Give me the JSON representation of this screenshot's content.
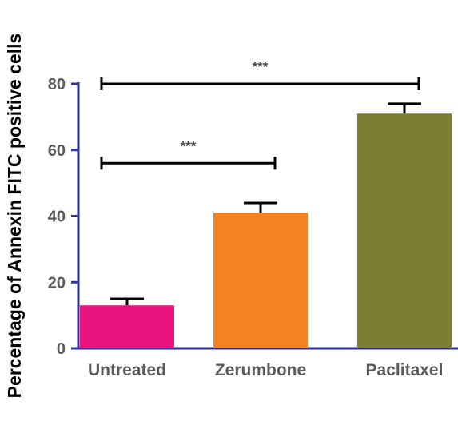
{
  "chart_data": {
    "type": "bar",
    "title": "",
    "xlabel": "",
    "ylabel": "Percentage of Annexin  FITC positive cells",
    "categories": [
      "Untreated",
      "Zerumbone",
      "Paclitaxel"
    ],
    "values": [
      13,
      41,
      71
    ],
    "errors": [
      2,
      3,
      3
    ],
    "colors": [
      "#e8147f",
      "#f58220",
      "#7b7e33"
    ],
    "ylim": [
      0,
      80
    ],
    "yticks": [
      0,
      20,
      40,
      60,
      80
    ],
    "ytick_labels": [
      "0",
      "20",
      "40",
      "60",
      "80"
    ],
    "grid": false,
    "axis_color": "#2e3192",
    "significance": [
      {
        "from": "Untreated",
        "to": "Zerumbone",
        "label": "***",
        "level": 56
      },
      {
        "from": "Untreated",
        "to": "Paclitaxel",
        "label": "***",
        "level": 80
      }
    ]
  }
}
